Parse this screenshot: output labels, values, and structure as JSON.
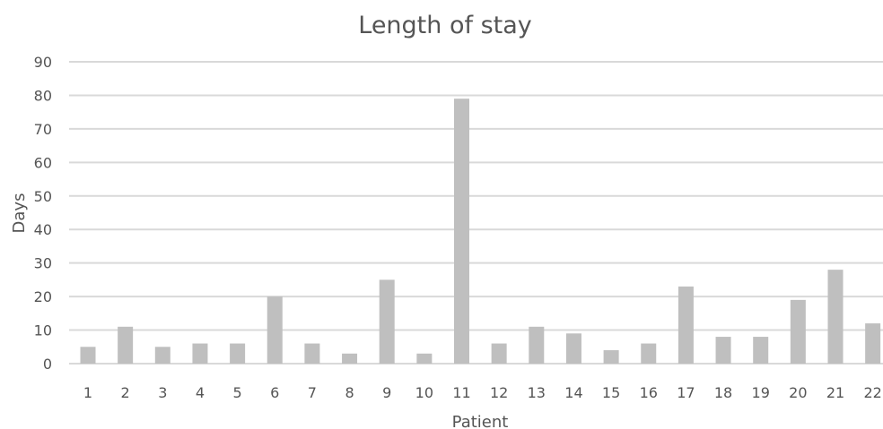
{
  "chart_data": {
    "type": "bar",
    "title": "Length of stay",
    "xlabel": "Patient",
    "ylabel": "Days",
    "ylim": [
      0,
      90
    ],
    "yticks": [
      "0",
      "10",
      "20",
      "30",
      "40",
      "50",
      "60",
      "70",
      "80",
      "90"
    ],
    "categories": [
      "1",
      "2",
      "3",
      "4",
      "5",
      "6",
      "7",
      "8",
      "9",
      "10",
      "11",
      "12",
      "13",
      "14",
      "15",
      "16",
      "17",
      "18",
      "19",
      "20",
      "21",
      "22"
    ],
    "values": [
      5,
      11,
      5,
      6,
      6,
      20,
      6,
      3,
      25,
      3,
      79,
      6,
      11,
      9,
      4,
      6,
      23,
      8,
      8,
      19,
      28,
      12
    ],
    "grid": true,
    "legend": "none",
    "colors": {
      "bar": "#bfbfbf",
      "grid": "#d9d9d9",
      "text": "#555555"
    }
  }
}
